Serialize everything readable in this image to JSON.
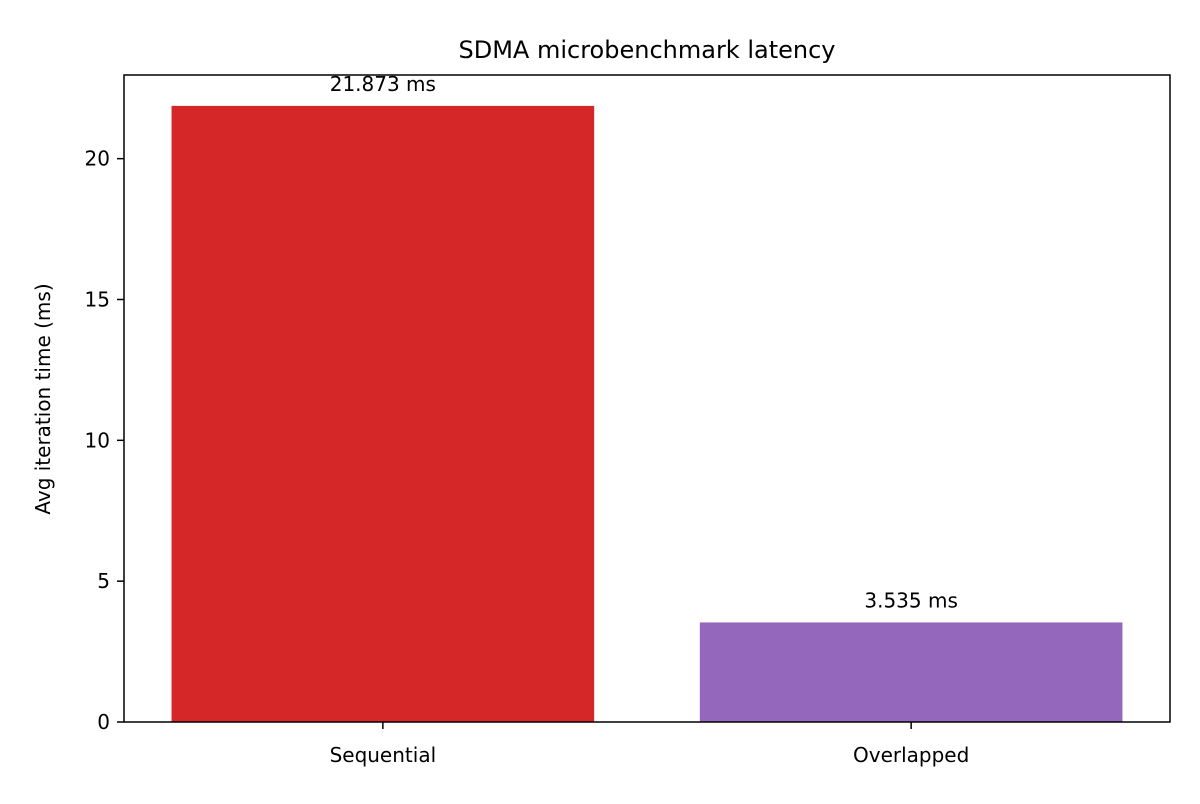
{
  "chart_data": {
    "type": "bar",
    "title": "SDMA microbenchmark latency",
    "xlabel": "",
    "ylabel": "Avg iteration time (ms)",
    "categories": [
      "Sequential",
      "Overlapped"
    ],
    "values": [
      21.873,
      3.535
    ],
    "data_labels": [
      "21.873 ms",
      "3.535 ms"
    ],
    "colors": [
      "#d62728",
      "#9467bd"
    ],
    "ylim": [
      0,
      22.97
    ],
    "yticks": [
      0,
      5,
      10,
      15,
      20
    ],
    "ytick_labels": [
      "0",
      "5",
      "10",
      "15",
      "20"
    ],
    "grid": false,
    "legend": "none"
  }
}
